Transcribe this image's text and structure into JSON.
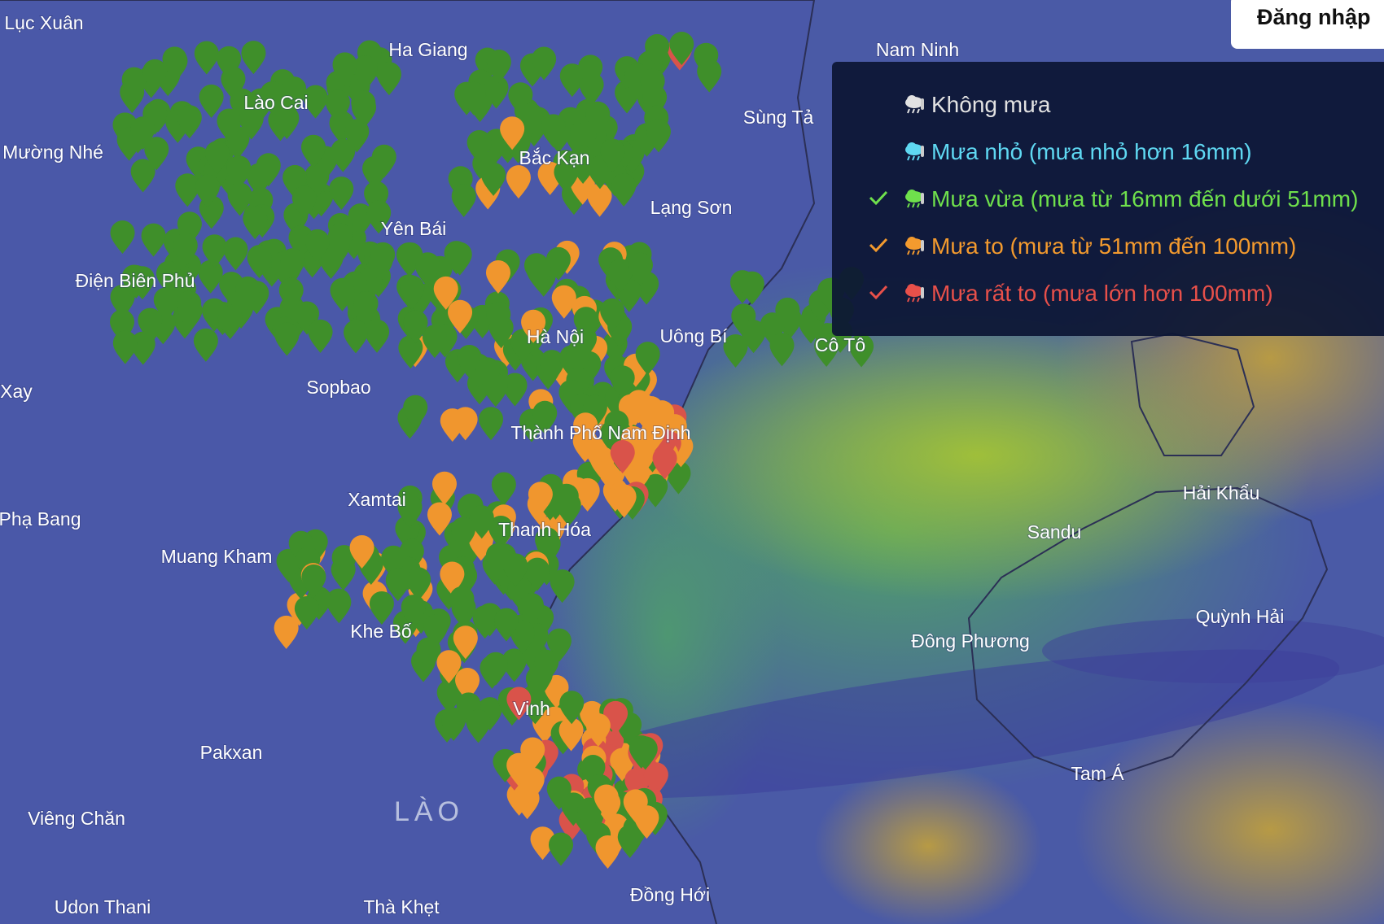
{
  "header": {
    "login": "Đăng nhập"
  },
  "legend": {
    "items": [
      {
        "label": "Không mưa",
        "color": "#e2e2e2",
        "checked": false
      },
      {
        "label": "Mưa nhỏ (mưa nhỏ hơn 16mm)",
        "color": "#5fd8f2",
        "checked": false
      },
      {
        "label": "Mưa vừa (mưa từ 16mm đến dưới 51mm)",
        "color": "#6fe04c",
        "checked": true
      },
      {
        "label": "Mưa to (mưa từ 51mm đến 100mm)",
        "color": "#f39a2e",
        "checked": true
      },
      {
        "label": "Mưa rất to (mưa lớn hơn 100mm)",
        "color": "#e8504a",
        "checked": true
      }
    ]
  },
  "map": {
    "places": [
      "Lục Xuân",
      "Ha Giang",
      "Lào Cai",
      "Mường Nhé",
      "Bắc Kạn",
      "Yên Bái",
      "Lạng Sơn",
      "Sùng Tả",
      "Nam Ninh",
      "Điện Biên Phủ",
      "Hà Nội",
      "Uông Bí",
      "Cô Tô",
      "Xay",
      "Sopbao",
      "Thành Phố Nam Định",
      "Xamtai",
      "Phạ Bang",
      "Thanh Hóa",
      "Muang Kham",
      "Sandu",
      "Hải Khẩu",
      "Khe Bố",
      "Đông Phương",
      "Quỳnh Hải",
      "Vinh",
      "Pakxan",
      "Viêng Chăn",
      "Tam Á",
      "Udon Thani",
      "Thà Khẹt",
      "Đồng Hới"
    ],
    "country": "LÀO"
  }
}
